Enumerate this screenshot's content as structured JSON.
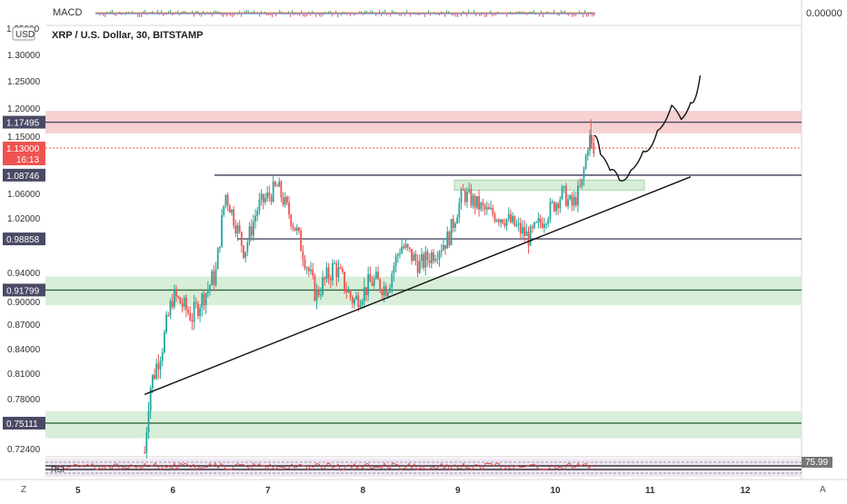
{
  "header": {
    "macd_label": "MACD",
    "macd_value": "0.00000",
    "symbol_title": "XRP / U.S. Dollar, 30, BITSTAMP",
    "currency_badge": "USD",
    "partial_top_tick": "1.35000"
  },
  "footer": {
    "left_icon": "Z",
    "right_icon": "A",
    "rsi_label": "RSI",
    "rsi_value": "75.99"
  },
  "colors": {
    "up": "#26a69a",
    "down": "#ef5350",
    "red_zone": "#f6c9c9",
    "green_zone": "#d4ecd4",
    "current_price": "#ef5350",
    "level_line": "#3a3a4a"
  },
  "chart_data": {
    "type": "candlestick",
    "title": "XRP / U.S. Dollar, 30, BITSTAMP",
    "x_ticks": [
      "5",
      "6",
      "7",
      "8",
      "9",
      "10",
      "11",
      "12"
    ],
    "y_ticks": [
      "1.30000",
      "1.25000",
      "1.20000",
      "1.15000",
      "1.06000",
      "1.02000",
      "0.94000",
      "0.90000",
      "0.87000",
      "0.84000",
      "0.81000",
      "0.78000",
      "0.72400"
    ],
    "ylim": [
      0.715,
      1.36
    ],
    "current_price": {
      "value": "1.13000",
      "countdown": "16:13"
    },
    "price_tags": [
      "1.17495",
      "1.08746",
      "0.98858",
      "0.91799",
      "0.75111"
    ],
    "resistance_zone": [
      1.155,
      1.195
    ],
    "support_zones": [
      [
        1.065,
        1.08
      ],
      [
        0.895,
        0.935
      ],
      [
        0.735,
        0.765
      ]
    ],
    "horizontal_levels": [
      1.17495,
      1.08746,
      0.98858,
      0.91799,
      0.75111
    ],
    "trendline": {
      "from": [
        "5.7",
        0.785
      ],
      "to": [
        "11.45",
        1.085
      ]
    },
    "price_path_key_points": [
      [
        "5.7",
        0.72
      ],
      [
        "5.75",
        0.79
      ],
      [
        "5.9",
        0.85
      ],
      [
        "6.0",
        0.91
      ],
      [
        "6.2",
        0.88
      ],
      [
        "6.45",
        0.94
      ],
      [
        "6.55",
        1.06
      ],
      [
        "6.75",
        0.97
      ],
      [
        "6.9",
        1.04
      ],
      [
        "7.1",
        1.07
      ],
      [
        "7.3",
        1.0
      ],
      [
        "7.5",
        0.91
      ],
      [
        "7.7",
        0.95
      ],
      [
        "7.9",
        0.9
      ],
      [
        "8.1",
        0.93
      ],
      [
        "8.25",
        0.92
      ],
      [
        "8.4",
        0.98
      ],
      [
        "8.6",
        0.95
      ],
      [
        "8.9",
        0.99
      ],
      [
        "9.05",
        1.06
      ],
      [
        "9.3",
        1.03
      ],
      [
        "9.5",
        1.02
      ],
      [
        "9.75",
        0.99
      ],
      [
        "9.95",
        1.03
      ],
      [
        "10.1",
        1.06
      ],
      [
        "10.2",
        1.04
      ],
      [
        "10.3",
        1.07
      ],
      [
        "10.38",
        1.15
      ],
      [
        "10.43",
        1.12
      ]
    ],
    "projection_path": [
      [
        "10.43",
        1.15
      ],
      [
        "10.5",
        1.12
      ],
      [
        "10.6",
        1.095
      ],
      [
        "10.7",
        1.08
      ],
      [
        "10.82",
        1.095
      ],
      [
        "10.95",
        1.125
      ],
      [
        "11.1",
        1.16
      ],
      [
        "11.25",
        1.205
      ],
      [
        "11.35",
        1.18
      ],
      [
        "11.45",
        1.21
      ],
      [
        "11.55",
        1.26
      ]
    ],
    "grid": false,
    "legend": "none"
  }
}
